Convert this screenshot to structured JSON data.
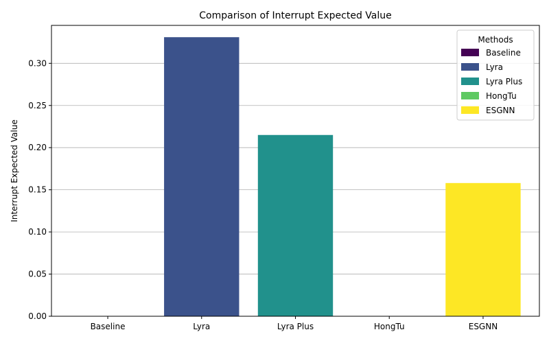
{
  "chart_data": {
    "type": "bar",
    "title": "Comparison of Interrupt Expected Value",
    "xlabel": "",
    "ylabel": "Interrupt Expected Value",
    "categories": [
      "Baseline",
      "Lyra",
      "Lyra Plus",
      "HongTu",
      "ESGNN"
    ],
    "values": [
      0.0,
      0.331,
      0.215,
      0.0,
      0.158
    ],
    "colors": [
      "#440154",
      "#3b528b",
      "#21918c",
      "#5ec962",
      "#fde725"
    ],
    "ylim": [
      0,
      0.345
    ],
    "yticks": [
      0.0,
      0.05,
      0.1,
      0.15,
      0.2,
      0.25,
      0.3
    ],
    "ytick_labels": [
      "0.00",
      "0.05",
      "0.10",
      "0.15",
      "0.20",
      "0.25",
      "0.30"
    ],
    "grid": "y",
    "legend": {
      "title": "Methods",
      "placement": "top-right",
      "entries": [
        "Baseline",
        "Lyra",
        "Lyra Plus",
        "HongTu",
        "ESGNN"
      ]
    }
  }
}
